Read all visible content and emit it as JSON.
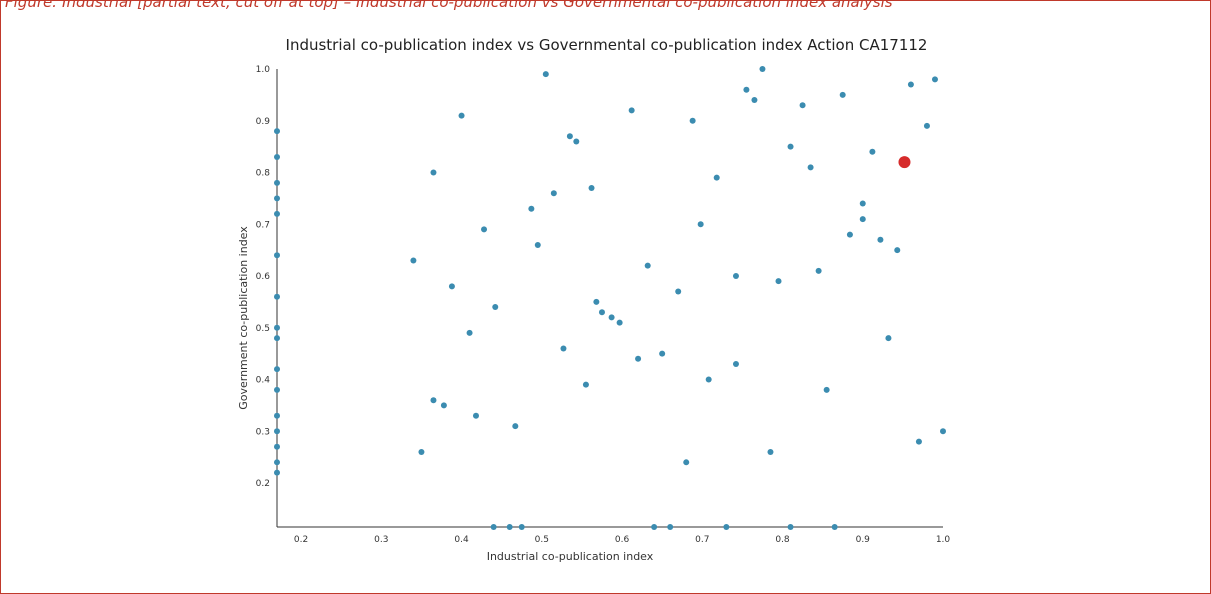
{
  "figure_caption": "Figure: Industrial [partial text, cut off at top] – Industrial co-publication vs Governmental co-publication index analysis",
  "colors": {
    "point": "#3b8cb0",
    "highlight": "#d62b2b",
    "axis": "#333333",
    "caption": "#c0392b"
  },
  "chart_data": {
    "type": "scatter",
    "title": "Industrial co-publication index vs Governmental co-publication index Action CA17112",
    "xlabel": "Industrial co-publication index",
    "ylabel": "Government co-publication index",
    "xlim": [
      0.17,
      1.0
    ],
    "ylim": [
      0.115,
      1.0
    ],
    "xticks": [
      "0.2",
      "0.3",
      "0.4",
      "0.5",
      "0.6",
      "0.7",
      "0.8",
      "0.9",
      "1.0"
    ],
    "yticks": [
      "0.2",
      "0.3",
      "0.4",
      "0.5",
      "0.6",
      "0.7",
      "0.8",
      "0.9",
      "1.0"
    ],
    "grid": false,
    "series": [
      {
        "points": [
          [
            0.505,
            0.99
          ],
          [
            0.775,
            1.0
          ],
          [
            0.99,
            0.98
          ],
          [
            0.96,
            0.97
          ],
          [
            0.755,
            0.96
          ],
          [
            0.765,
            0.94
          ],
          [
            0.875,
            0.95
          ],
          [
            0.825,
            0.93
          ],
          [
            0.612,
            0.92
          ],
          [
            0.4,
            0.91
          ],
          [
            0.688,
            0.9
          ],
          [
            0.98,
            0.89
          ],
          [
            0.535,
            0.87
          ],
          [
            0.543,
            0.86
          ],
          [
            0.81,
            0.85
          ],
          [
            0.912,
            0.84
          ],
          [
            0.835,
            0.81
          ],
          [
            0.365,
            0.8
          ],
          [
            0.718,
            0.79
          ],
          [
            0.562,
            0.77
          ],
          [
            0.515,
            0.76
          ],
          [
            0.9,
            0.74
          ],
          [
            0.487,
            0.73
          ],
          [
            0.9,
            0.71
          ],
          [
            0.698,
            0.7
          ],
          [
            0.428,
            0.69
          ],
          [
            0.884,
            0.68
          ],
          [
            0.922,
            0.67
          ],
          [
            0.495,
            0.66
          ],
          [
            0.943,
            0.65
          ],
          [
            0.34,
            0.63
          ],
          [
            0.632,
            0.62
          ],
          [
            0.845,
            0.61
          ],
          [
            0.742,
            0.6
          ],
          [
            0.795,
            0.59
          ],
          [
            0.388,
            0.58
          ],
          [
            0.67,
            0.57
          ],
          [
            0.568,
            0.55
          ],
          [
            0.442,
            0.54
          ],
          [
            0.575,
            0.53
          ],
          [
            0.587,
            0.52
          ],
          [
            0.597,
            0.51
          ],
          [
            0.41,
            0.49
          ],
          [
            0.932,
            0.48
          ],
          [
            0.527,
            0.46
          ],
          [
            0.65,
            0.45
          ],
          [
            0.62,
            0.44
          ],
          [
            0.742,
            0.43
          ],
          [
            0.708,
            0.4
          ],
          [
            0.555,
            0.39
          ],
          [
            0.855,
            0.38
          ],
          [
            0.365,
            0.36
          ],
          [
            0.378,
            0.35
          ],
          [
            0.418,
            0.33
          ],
          [
            0.467,
            0.31
          ],
          [
            1.0,
            0.3
          ],
          [
            0.97,
            0.28
          ],
          [
            0.35,
            0.26
          ],
          [
            0.785,
            0.26
          ],
          [
            0.68,
            0.24
          ],
          [
            0.17,
            0.88
          ],
          [
            0.17,
            0.83
          ],
          [
            0.17,
            0.78
          ],
          [
            0.17,
            0.75
          ],
          [
            0.17,
            0.72
          ],
          [
            0.17,
            0.64
          ],
          [
            0.17,
            0.56
          ],
          [
            0.17,
            0.5
          ],
          [
            0.17,
            0.48
          ],
          [
            0.17,
            0.42
          ],
          [
            0.17,
            0.38
          ],
          [
            0.17,
            0.33
          ],
          [
            0.17,
            0.3
          ],
          [
            0.17,
            0.27
          ],
          [
            0.17,
            0.24
          ],
          [
            0.17,
            0.22
          ],
          [
            0.44,
            0.115
          ],
          [
            0.46,
            0.115
          ],
          [
            0.475,
            0.115
          ],
          [
            0.64,
            0.115
          ],
          [
            0.66,
            0.115
          ],
          [
            0.73,
            0.115
          ],
          [
            0.81,
            0.115
          ],
          [
            0.865,
            0.115
          ]
        ]
      },
      {
        "highlight": true,
        "points": [
          [
            0.952,
            0.82
          ]
        ]
      }
    ]
  }
}
